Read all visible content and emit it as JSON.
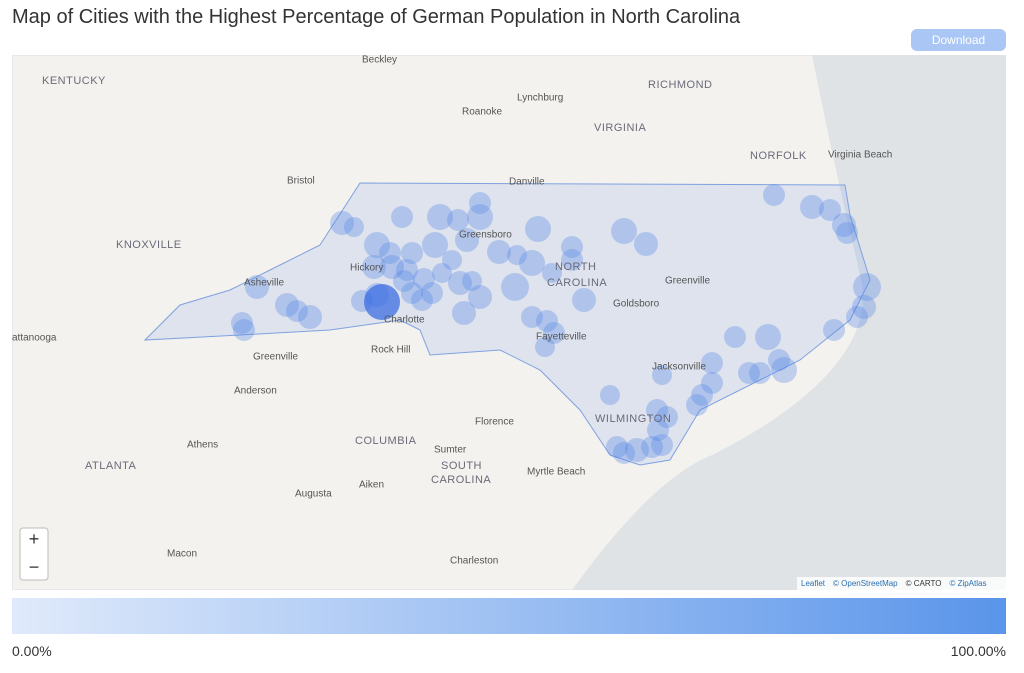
{
  "header": {
    "title": "Map of Cities with the Highest Percentage of German Population in North Carolina",
    "download": "Download"
  },
  "map": {
    "labels": [
      {
        "text": "Beckley"
      },
      {
        "text": "KENTUCKY"
      },
      {
        "text": "Lynchburg"
      },
      {
        "text": "RICHMOND"
      },
      {
        "text": "Roanoke"
      },
      {
        "text": "VIRGINIA"
      },
      {
        "text": "NORFOLK"
      },
      {
        "text": "Virginia Beach"
      },
      {
        "text": "Bristol"
      },
      {
        "text": "Danville"
      },
      {
        "text": "KNOXVILLE"
      },
      {
        "text": "Greensboro"
      },
      {
        "text": "NORTH"
      },
      {
        "text": "CAROLINA"
      },
      {
        "text": "Greenville"
      },
      {
        "text": "Asheville"
      },
      {
        "text": "Hickory"
      },
      {
        "text": "Goldsboro"
      },
      {
        "text": "Charlotte"
      },
      {
        "text": "attanooga"
      },
      {
        "text": "Fayetteville"
      },
      {
        "text": "Greenville"
      },
      {
        "text": "Rock Hill"
      },
      {
        "text": "Jacksonville"
      },
      {
        "text": "Anderson"
      },
      {
        "text": "WILMINGTON"
      },
      {
        "text": "Florence"
      },
      {
        "text": "Athens"
      },
      {
        "text": "COLUMBIA"
      },
      {
        "text": "Sumter"
      },
      {
        "text": "ATLANTA"
      },
      {
        "text": "SOUTH"
      },
      {
        "text": "CAROLINA"
      },
      {
        "text": "Myrtle Beach"
      },
      {
        "text": "Aiken"
      },
      {
        "text": "Augusta"
      },
      {
        "text": "Macon"
      },
      {
        "text": "Charleston"
      }
    ],
    "zoom_in": "+",
    "zoom_out": "−",
    "attribution": [
      "Leaflet",
      "© OpenStreetMap",
      "© CARTO",
      "© ZipAtlas"
    ]
  },
  "legend": {
    "min_label": "0.00%",
    "max_label": "100.00%"
  }
}
